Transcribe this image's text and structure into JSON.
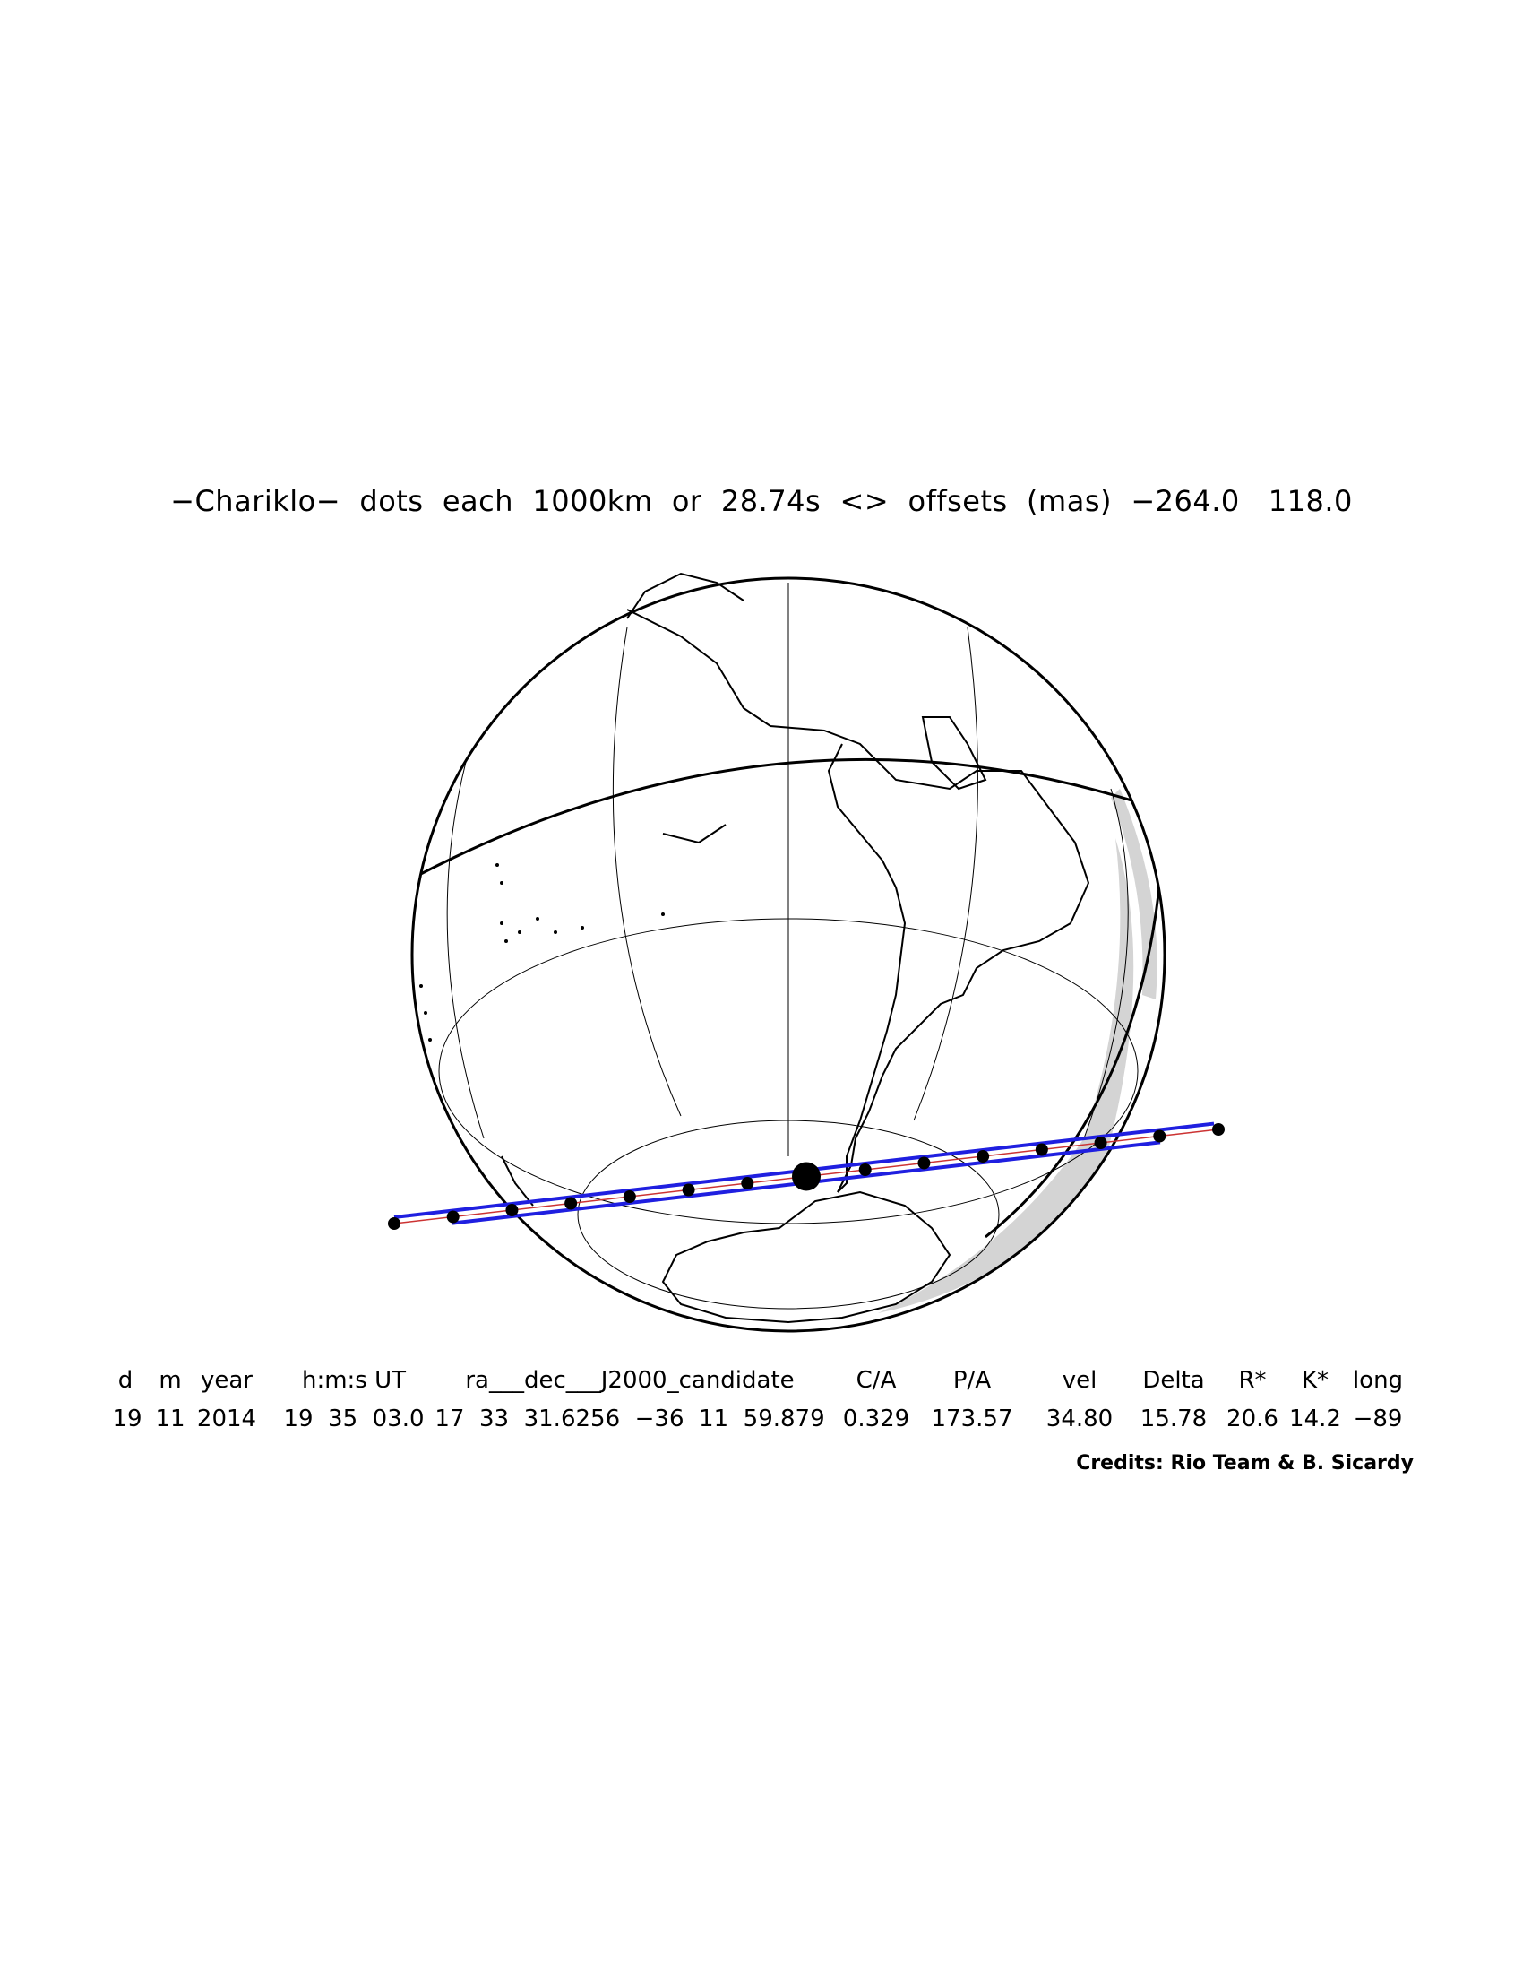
{
  "title": "−Chariklo−  dots  each  1000km  or  28.74s  <>  offsets  (mas)  −264.0   118.0",
  "table": {
    "headers": [
      "d",
      "m",
      "year",
      "h:m:s UT",
      "ra___dec___J2000_candidate",
      "C/A",
      "P/A",
      "vel",
      "Delta",
      "R*",
      "K*",
      "long"
    ],
    "values": [
      "19",
      "11",
      "2014",
      "19  35  03.0",
      "17  33  31.6256  −36  11  59.879",
      "0.329",
      "173.57",
      "34.80",
      "15.78",
      "20.6",
      "14.2",
      "−89"
    ]
  },
  "credits": "Credits: Rio Team & B. Sicardy",
  "colors": {
    "shadow_path": "#1f1fe0",
    "centerline": "#cc3333",
    "night_shade": "#d4d4d4",
    "ink": "#000000"
  }
}
